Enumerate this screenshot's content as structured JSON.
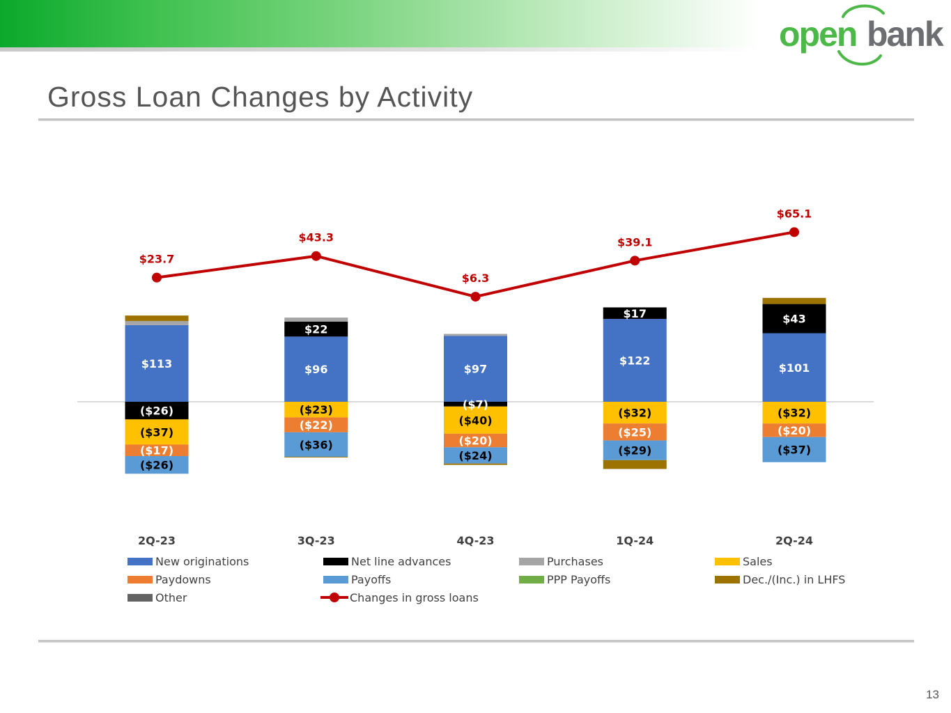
{
  "page": {
    "title": "Gross Loan Changes by Activity",
    "page_number": "13",
    "logo": {
      "text_part1": "open",
      "text_part2": "bank",
      "color_green": "#4cb848",
      "color_gray": "#6d6e71"
    }
  },
  "chart_data": {
    "type": "bar",
    "stacked": true,
    "title": "",
    "xlabel": "",
    "ylabel": "",
    "categories": [
      "2Q-23",
      "3Q-23",
      "4Q-23",
      "1Q-24",
      "2Q-24"
    ],
    "series": [
      {
        "name": "New originations",
        "color": "#4472c4",
        "label_color": "#ffffff",
        "values": [
          113,
          96,
          97,
          122,
          101
        ],
        "labels": [
          "$113",
          "$96",
          "$97",
          "$122",
          "$101"
        ]
      },
      {
        "name": "Net line advances",
        "color": "#000000",
        "label_color": "#ffffff",
        "values": [
          -26,
          22,
          -7,
          17,
          43
        ],
        "labels": [
          "($26)",
          "$22",
          "($7)",
          "$17",
          "$43"
        ]
      },
      {
        "name": "Purchases",
        "color": "#a5a5a5",
        "label_color": "#000000",
        "values": [
          6,
          6,
          3,
          0,
          0
        ],
        "labels": [
          "",
          "",
          "",
          "",
          ""
        ]
      },
      {
        "name": "Sales",
        "color": "#ffc000",
        "label_color": "#000000",
        "values": [
          -37,
          -23,
          -40,
          -32,
          -32
        ],
        "labels": [
          "($37)",
          "($23)",
          "($40)",
          "($32)",
          "($32)"
        ]
      },
      {
        "name": "Paydowns",
        "color": "#ed7d31",
        "label_color": "#ffffff",
        "values": [
          -17,
          -22,
          -20,
          -25,
          -20
        ],
        "labels": [
          "($17)",
          "($22)",
          "($20)",
          "($25)",
          "($20)"
        ]
      },
      {
        "name": "Payoffs",
        "color": "#5b9bd5",
        "label_color": "#000000",
        "values": [
          -26,
          -36,
          -24,
          -29,
          -37
        ],
        "labels": [
          "($26)",
          "($36)",
          "($24)",
          "($29)",
          "($37)"
        ]
      },
      {
        "name": "PPP Payoffs",
        "color": "#70ad47",
        "label_color": "#000000",
        "values": [
          0,
          0,
          0,
          0,
          0
        ],
        "labels": [
          "",
          "",
          "",
          "",
          ""
        ]
      },
      {
        "name": "Dec./(Inc.) in LHFS",
        "color": "#9c7200",
        "label_color": "#000000",
        "values": [
          8,
          -1,
          -2,
          -13,
          9
        ],
        "labels": [
          "",
          "",
          "",
          "",
          ""
        ]
      },
      {
        "name": "Other",
        "color": "#636363",
        "label_color": "#000000",
        "values": [
          0,
          0,
          0,
          0,
          0
        ],
        "labels": [
          "",
          "",
          "",
          "",
          ""
        ]
      }
    ],
    "line_series": {
      "name": "Changes in gross loans",
      "color": "#c00000",
      "values": [
        23.7,
        43.3,
        6.3,
        39.1,
        65.1
      ],
      "labels": [
        "$23.7",
        "$43.3",
        "$6.3",
        "$39.1",
        "$65.1"
      ]
    },
    "legend_position": "bottom",
    "grid": false
  }
}
